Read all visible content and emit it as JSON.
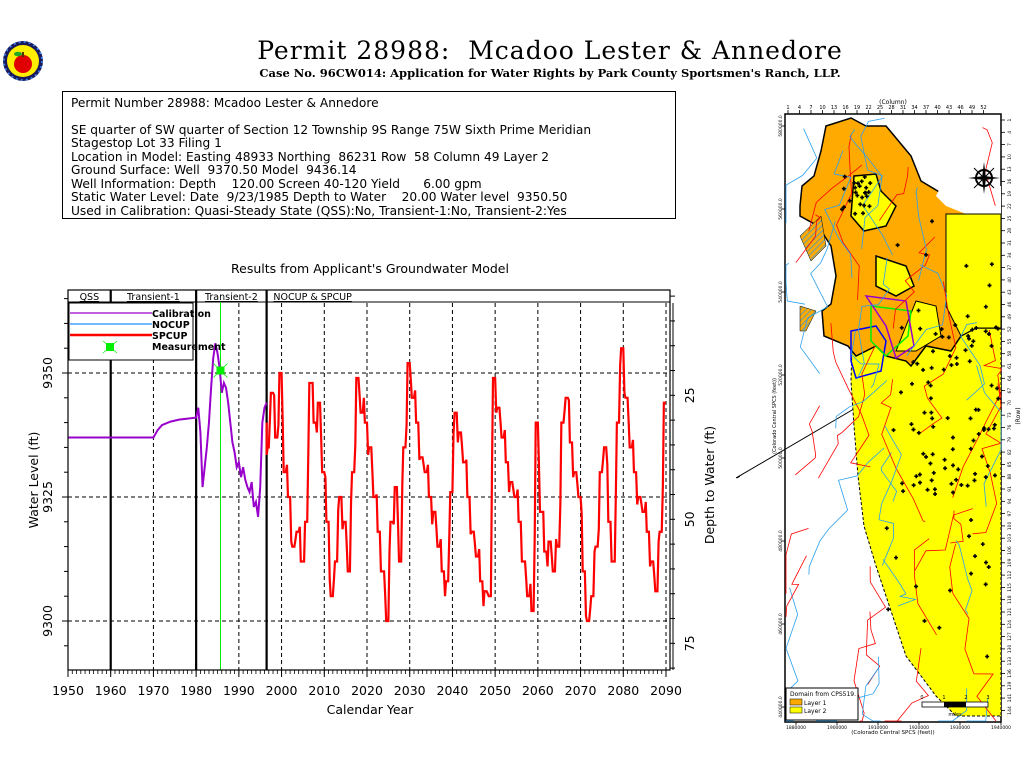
{
  "header": {
    "title": "Permit 28988:  Mcadoo Lester & Annedore",
    "subtitle": "Case No. 96CW014: Application for Water Rights by Park County Sportsmen's Ranch, LLP.",
    "logo_icon": "apple-seal-icon"
  },
  "info_box": {
    "heading": "Permit Number 28988: Mcadoo Lester & Annedore",
    "lines": [
      "SE quarter of SW quarter of Section 12 Township 9S Range 75W Sixth Prime Meridian",
      "Stagestop Lot 33 Filing 1",
      "Location in Model: Easting 48933 Northing  86231 Row  58 Column 49 Layer 2",
      "Ground Surface: Well  9370.50 Model  9436.14",
      "Well Information: Depth    120.00 Screen 40-120 Yield      6.00 gpm",
      "Static Water Level: Date  9/23/1985 Depth to Water    20.00 Water level  9350.50",
      "Used in Calibration: Quasi-Steady State (QSS):No, Transient-1:No, Transient-2:Yes"
    ]
  },
  "chart_data": {
    "type": "line",
    "title": "Results from Applicant's Groundwater Model",
    "xlabel": "Calendar Year",
    "ylabel": "Water Level (ft)",
    "y2label": "Depth to Water (ft)",
    "xlim": [
      1950,
      2090
    ],
    "ylim": [
      9290,
      9366.7
    ],
    "xticks": [
      1950,
      1960,
      1970,
      1980,
      1990,
      2000,
      2010,
      2020,
      2030,
      2040,
      2050,
      2060,
      2070,
      2080,
      2090
    ],
    "yticks": [
      9300,
      9325,
      9350
    ],
    "y2ticks": [
      25,
      50,
      75
    ],
    "ground_surface": 9370.5,
    "grid": true,
    "legend_position": "top-left",
    "periods": [
      {
        "label": "QSS",
        "start": 1950,
        "end": 1960
      },
      {
        "label": "Transient-1",
        "start": 1960,
        "end": 1980
      },
      {
        "label": "Transient-2",
        "start": 1980,
        "end": 1996.5
      },
      {
        "label": "NOCUP & SPCUP",
        "start": 1996.5,
        "end": 2090
      }
    ],
    "period_boundaries": [
      1960,
      1980,
      1996.5
    ],
    "legend": [
      {
        "name": "Calibration",
        "color": "#9900cc"
      },
      {
        "name": "NOCUP",
        "color": "#1e90ff"
      },
      {
        "name": "SPCUP",
        "color": "#ff0000"
      },
      {
        "name": "Measurement",
        "color": "#00ee00"
      }
    ],
    "measurement": {
      "year": 1985.7,
      "value": 9350.5
    },
    "series": [
      {
        "name": "Calibration",
        "color": "#9900cc",
        "x": [
          1950,
          1970,
          1971,
          1972,
          1974,
          1976,
          1978,
          1980,
          1980.5,
          1981,
          1981.5,
          1982,
          1982.5,
          1983,
          1983.5,
          1984,
          1984.5,
          1985,
          1985.5,
          1986,
          1986.5,
          1987,
          1987.5,
          1988,
          1988.5,
          1989,
          1989.5,
          1990,
          1990.5,
          1991,
          1991.5,
          1992,
          1992.5,
          1993,
          1993.5,
          1994,
          1994.5,
          1995,
          1995.5,
          1996,
          1996.5
        ],
        "y": [
          9337,
          9337,
          9338.5,
          9339.5,
          9340.2,
          9340.6,
          9340.8,
          9341,
          9343,
          9338,
          9327,
          9331,
          9335,
          9340,
          9347,
          9353,
          9356,
          9354,
          9351,
          9346,
          9348,
          9347,
          9344,
          9340,
          9336,
          9334,
          9331,
          9332,
          9329,
          9331,
          9328.5,
          9327,
          9326,
          9328,
          9323,
          9324,
          9321,
          9327,
          9340,
          9343,
          9344
        ]
      },
      {
        "name": "SPCUP",
        "color": "#ff0000",
        "x": [
          1996.5,
          1997,
          1998,
          1999,
          2000,
          2001,
          2002,
          2003,
          2004,
          2005,
          2006,
          2007,
          2008,
          2009,
          2010,
          2011,
          2012,
          2013,
          2014,
          2015,
          2016,
          2017,
          2018,
          2019,
          2020,
          2021,
          2022,
          2023,
          2024,
          2025,
          2026,
          2027,
          2028,
          2029,
          2030,
          2031,
          2032,
          2033,
          2034,
          2035,
          2036,
          2037,
          2038,
          2039,
          2040,
          2041,
          2042,
          2043,
          2044,
          2045,
          2046,
          2047,
          2048,
          2049,
          2050,
          2051,
          2052,
          2053,
          2054,
          2055,
          2056,
          2057,
          2058,
          2059,
          2060,
          2061,
          2062,
          2063,
          2064,
          2065,
          2066,
          2067,
          2068,
          2069,
          2070,
          2071,
          2072,
          2073,
          2074,
          2075,
          2076,
          2077,
          2078,
          2079,
          2080,
          2081,
          2082,
          2083,
          2084,
          2085,
          2086,
          2087,
          2088,
          2089,
          2090
        ],
        "y": [
          9340,
          9335,
          9346,
          9337,
          9350,
          9330,
          9325,
          9315,
          9318,
          9312,
          9320,
          9348,
          9340,
          9344,
          9330,
          9320,
          9305,
          9312,
          9325,
          9320,
          9310,
          9330,
          9349,
          9342,
          9340,
          9335,
          9325,
          9318,
          9310,
          9300,
          9320,
          9327,
          9312,
          9335,
          9352,
          9345,
          9340,
          9333,
          9330,
          9325,
          9322,
          9315,
          9310,
          9308,
          9326,
          9342,
          9338,
          9332,
          9325,
          9318,
          9313,
          9308,
          9306,
          9305,
          9349,
          9343,
          9337,
          9332,
          9328,
          9325,
          9320,
          9312,
          9305,
          9302,
          9340,
          9322,
          9314,
          9316,
          9310,
          9315,
          9340,
          9345,
          9336,
          9330,
          9325,
          9310,
          9300,
          9305,
          9315,
          9330,
          9335,
          9320,
          9312,
          9340,
          9355,
          9345,
          9335,
          9330,
          9325,
          9322,
          9318,
          9312,
          9306,
          9318,
          9344
        ]
      }
    ]
  },
  "map": {
    "top_axis_label": "(Column)",
    "column_ticks": [
      "1",
      "4",
      "7",
      "10",
      "13",
      "16",
      "19",
      "22",
      "25",
      "28",
      "31",
      "34",
      "37",
      "40",
      "43",
      "46",
      "49",
      "52"
    ],
    "right_axis_label": "(Row)",
    "row_ticks": [
      "1",
      "4",
      "7",
      "10",
      "13",
      "16",
      "19",
      "22",
      "25",
      "28",
      "31",
      "34",
      "37",
      "40",
      "43",
      "46",
      "49",
      "52",
      "55",
      "58",
      "61",
      "64",
      "67",
      "70",
      "73",
      "76",
      "79",
      "82",
      "85",
      "88",
      "91",
      "94",
      "97",
      "100",
      "103",
      "106",
      "109",
      "112",
      "115",
      "118",
      "121",
      "124",
      "127",
      "130",
      "133",
      "136",
      "139",
      "141",
      "144"
    ],
    "left_ticks": [
      "580000.0",
      "560000.0",
      "540000.0",
      "520000.0",
      "500000.0",
      "480000.0",
      "460000.0",
      "440000.0"
    ],
    "left_axis_label": "(Colorado Central SPCS (feet))",
    "bottom_ticks": [
      "1880000",
      "1900000",
      "1910000",
      "1920000",
      "1930000",
      "1940000"
    ],
    "bottom_axis_label": "(Colorado Central SPCS (feet))",
    "legend_title": "Domain from CPS519.",
    "legend_items": [
      {
        "label": "Layer 1",
        "color": "#ffaa00"
      },
      {
        "label": "Layer 2",
        "color": "#ffff00"
      }
    ],
    "scale_bar_ticks": [
      "0",
      "1",
      "2",
      "3"
    ],
    "scale_bar_units": "miles",
    "compass_icon": "compass-rose-icon"
  }
}
